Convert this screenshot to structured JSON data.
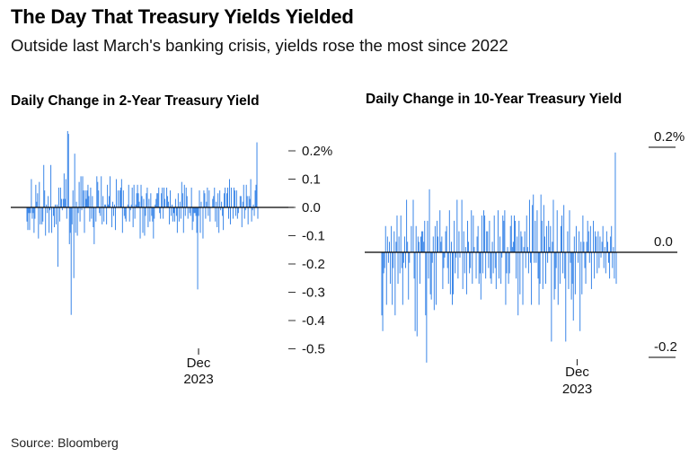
{
  "header": {
    "title": "The Day That Treasury Yields Yielded",
    "subtitle": "Outside last March's banking crisis, yields rose the most since 2022"
  },
  "footer": {
    "source": "Source: Bloomberg"
  },
  "colors": {
    "bar": "#3a86e8",
    "axis": "#000000"
  },
  "chart_data": [
    {
      "type": "bar",
      "title": "Daily Change in 2-Year Treasury Yield",
      "ylim": [
        -0.6,
        0.3
      ],
      "y_ticks": [
        {
          "value": 0.2,
          "label": "0.2%"
        },
        {
          "value": 0.1,
          "label": "0.1"
        },
        {
          "value": 0.0,
          "label": "0.0"
        },
        {
          "value": -0.1,
          "label": "-0.1"
        },
        {
          "value": -0.2,
          "label": "-0.2"
        },
        {
          "value": -0.3,
          "label": "-0.3"
        },
        {
          "value": -0.4,
          "label": "-0.4"
        },
        {
          "value": -0.5,
          "label": "-0.5"
        }
      ],
      "x_tick": {
        "month": "Dec",
        "year": "2023",
        "index": 194
      },
      "values": [
        -0.05,
        -0.08,
        -0.02,
        -0.08,
        -0.02,
        0.1,
        -0.04,
        -0.02,
        -0.09,
        -0.04,
        0.08,
        0.02,
        0.05,
        -0.11,
        0.09,
        -0.06,
        0.0,
        -0.06,
        -0.05,
        0.15,
        0.06,
        -0.1,
        0.01,
        -0.02,
        0.04,
        -0.09,
        -0.01,
        0.15,
        -0.09,
        0.0,
        -0.03,
        -0.07,
        0.01,
        -0.06,
        0.01,
        -0.21,
        0.07,
        -0.05,
        0.07,
        0.03,
        -0.01,
        0.03,
        0.12,
        0.03,
        0.1,
        -0.04,
        0.27,
        0.26,
        -0.13,
        -0.09,
        -0.38,
        -0.06,
        0.06,
        -0.25,
        0.19,
        -0.09,
        0.02,
        -0.1,
        -0.02,
        0.09,
        -0.05,
        0.11,
        -0.01,
        0.11,
        0.06,
        -0.09,
        0.06,
        0.03,
        0.06,
        0.08,
        0.04,
        -0.05,
        0.07,
        -0.04,
        0.04,
        -0.07,
        -0.13,
        0.0,
        -0.05,
        0.11,
        0.09,
        0.06,
        -0.02,
        -0.03,
        0.11,
        -0.06,
        0.04,
        -0.05,
        0.01,
        0.01,
        -0.06,
        0.08,
        0.01,
        0.04,
        0.11,
        0.0,
        -0.07,
        0.02,
        -0.03,
        0.01,
        -0.08,
        0.1,
        0.0,
        0.06,
        0.0,
        0.06,
        0.07,
        0.1,
        -0.09,
        0.06,
        -0.03,
        -0.04,
        -0.05,
        0.0,
        0.01,
        0.08,
        -0.05,
        -0.01,
        0.01,
        0.07,
        -0.07,
        0.08,
        -0.04,
        0.01,
        0.05,
        0.08,
        0.05,
        0.02,
        -0.11,
        0.08,
        0.04,
        -0.09,
        0.03,
        -0.1,
        -0.03,
        0.05,
        0.07,
        -0.07,
        0.03,
        -0.05,
        0.05,
        -0.03,
        -0.05,
        -0.11,
        -0.04,
        0.01,
        0.03,
        0.05,
        0.05,
        0.07,
        -0.02,
        -0.04,
        0.05,
        0.07,
        -0.04,
        0.07,
        0.03,
        0.0,
        0.07,
        0.04,
        0.02,
        -0.06,
        0.06,
        -0.03,
        0.01,
        -0.05,
        -0.02,
        -0.05,
        0.03,
        -0.03,
        -0.09,
        0.05,
        -0.05,
        0.02,
        -0.04,
        0.09,
        0.05,
        -0.09,
        0.08,
        -0.03,
        0.07,
        0.04,
        -0.04,
        0.0,
        -0.02,
        -0.03,
        0.07,
        -0.08,
        -0.05,
        -0.02,
        -0.02,
        -0.03,
        -0.09,
        -0.29,
        -0.03,
        0.06,
        -0.09,
        0.02,
        0.0,
        -0.11,
        0.06,
        0.05,
        -0.04,
        0.02,
        0.07,
        -0.03,
        0.06,
        -0.05,
        0.0,
        0.0,
        0.03,
        0.04,
        0.07,
        -0.05,
        0.02,
        -0.07,
        0.05,
        -0.09,
        0.06,
        -0.01,
        0.02,
        -0.03,
        -0.08,
        0.05,
        0.07,
        0.0,
        0.05,
        0.07,
        -0.04,
        0.1,
        -0.06,
        0.07,
        0.0,
        -0.04,
        0.07,
        0.06,
        -0.03,
        0.06,
        -0.04,
        -0.02,
        0.0,
        0.04,
        0.04,
        -0.07,
        0.02,
        0.08,
        -0.04,
        -0.01,
        0.08,
        0.04,
        -0.06,
        0.04,
        0.03,
        0.1,
        -0.05,
        -0.01,
        0.01,
        -0.03,
        0.06,
        0.08,
        0.23,
        -0.04
      ]
    },
    {
      "type": "bar",
      "title": "Daily Change in 10-Year Treasury Yield",
      "ylim": [
        -0.27,
        0.25
      ],
      "y_ticks": [
        {
          "value": 0.2,
          "label": "0.2%"
        },
        {
          "value": 0.0,
          "label": "0.0"
        },
        {
          "value": -0.2,
          "label": "-0.2"
        }
      ],
      "x_tick": {
        "month": "Dec",
        "year": "2023",
        "index": 205
      },
      "values": [
        -0.12,
        -0.15,
        -0.04,
        -0.03,
        0.05,
        -0.1,
        0.03,
        -0.02,
        0.02,
        -0.06,
        0.05,
        -0.1,
        -0.03,
        0.04,
        -0.12,
        0.02,
        0.07,
        -0.06,
        0.03,
        -0.04,
        0.07,
        -0.03,
        -0.1,
        -0.02,
        0.03,
        -0.03,
        0.1,
        0.02,
        -0.09,
        -0.02,
        0.0,
        0.05,
        0.0,
        0.1,
        -0.05,
        -0.15,
        0.05,
        -0.16,
        0.03,
        0.02,
        -0.06,
        0.03,
        0.04,
        0.04,
        0.02,
        0.06,
        -0.12,
        -0.21,
        0.06,
        -0.05,
        0.12,
        -0.08,
        -0.09,
        -0.02,
        0.03,
        -0.11,
        0.05,
        -0.1,
        0.06,
        0.03,
        0.0,
        0.08,
        0.02,
        0.03,
        -0.07,
        -0.03,
        -0.01,
        0.04,
        0.05,
        -0.03,
        -0.06,
        0.08,
        -0.08,
        0.02,
        -0.1,
        -0.08,
        0.06,
        -0.04,
        -0.01,
        0.1,
        -0.05,
        0.04,
        -0.01,
        0.0,
        0.1,
        -0.07,
        0.04,
        -0.04,
        0.01,
        -0.08,
        0.06,
        0.02,
        -0.04,
        -0.03,
        0.08,
        -0.06,
        0.07,
        0.01,
        0.0,
        -0.05,
        0.03,
        0.05,
        -0.06,
        -0.04,
        -0.09,
        0.07,
        -0.04,
        0.08,
        0.07,
        -0.05,
        0.04,
        0.04,
        -0.03,
        0.06,
        -0.05,
        -0.06,
        0.02,
        -0.04,
        0.07,
        -0.03,
        -0.07,
        0.0,
        0.08,
        -0.05,
        0.03,
        -0.06,
        -0.01,
        0.07,
        0.06,
        0.08,
        -0.1,
        -0.04,
        0.01,
        -0.06,
        -0.04,
        0.05,
        0.07,
        0.01,
        0.02,
        0.07,
        0.06,
        -0.05,
        0.03,
        -0.12,
        0.06,
        -0.08,
        0.04,
        0.03,
        -0.1,
        0.01,
        0.04,
        -0.03,
        0.07,
        0.01,
        -0.04,
        0.1,
        -0.02,
        -0.1,
        0.09,
        0.11,
        -0.02,
        0.06,
        -0.02,
        0.08,
        -0.05,
        -0.1,
        -0.06,
        0.11,
        0.06,
        -0.07,
        0.09,
        0.03,
        -0.06,
        0.05,
        -0.02,
        0.06,
        0.01,
        0.05,
        -0.17,
        0.02,
        0.1,
        -0.09,
        -0.07,
        -0.03,
        0.08,
        -0.1,
        0.0,
        -0.06,
        0.05,
        0.07,
        -0.04,
        0.09,
        -0.05,
        -0.17,
        0.0,
        0.04,
        -0.07,
        0.08,
        -0.02,
        -0.09,
        -0.06,
        -0.13,
        0.03,
        -0.08,
        0.05,
        0.0,
        -0.02,
        0.04,
        -0.15,
        0.02,
        -0.08,
        0.07,
        0.02,
        -0.03,
        -0.06,
        0.02,
        0.06,
        0.04,
        -0.02,
        0.05,
        -0.07,
        0.0,
        0.06,
        -0.05,
        0.04,
        0.03,
        -0.04,
        0.04,
        -0.03,
        0.03,
        -0.01,
        0.02,
        0.05,
        -0.03,
        0.01,
        -0.04,
        0.04,
        0.02,
        -0.02,
        -0.05,
        0.03,
        0.05,
        -0.03,
        0.01,
        -0.05,
        0.19,
        -0.06
      ]
    }
  ]
}
